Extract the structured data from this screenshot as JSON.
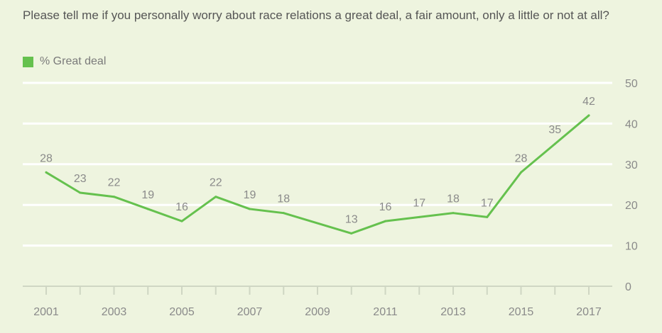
{
  "question": "Please tell me if you personally worry about race relations a great deal, a fair amount, only a little or not at all?",
  "colors": {
    "background": "#eef4df",
    "series": "#65c14e",
    "gridline": "#ffffff",
    "axis": "#cfd6c3"
  },
  "chart_data": {
    "type": "line",
    "title": "",
    "xlabel": "",
    "ylabel": "",
    "x": [
      2001,
      2002,
      2003,
      2004,
      2005,
      2006,
      2007,
      2008,
      2009,
      2010,
      2011,
      2012,
      2013,
      2014,
      2015,
      2016,
      2017
    ],
    "x_tick_labels": [
      "2001",
      "2003",
      "2005",
      "2007",
      "2009",
      "2011",
      "2013",
      "2015",
      "2017"
    ],
    "y_ticks": [
      0,
      10,
      20,
      30,
      40,
      50
    ],
    "ylim": [
      0,
      50
    ],
    "y_axis_position": "right",
    "grid": true,
    "legend_position": "top-left",
    "series": [
      {
        "name": "% Great deal",
        "color": "#65c14e",
        "points": [
          {
            "x": 2001,
            "y": 28,
            "label": "28"
          },
          {
            "x": 2002,
            "y": 23,
            "label": "23"
          },
          {
            "x": 2003,
            "y": 22,
            "label": "22"
          },
          {
            "x": 2004,
            "y": 19,
            "label": "19"
          },
          {
            "x": 2005,
            "y": 16,
            "label": "16"
          },
          {
            "x": 2006,
            "y": 22,
            "label": "22"
          },
          {
            "x": 2007,
            "y": 19,
            "label": "19"
          },
          {
            "x": 2008,
            "y": 18,
            "label": "18"
          },
          {
            "x": 2010,
            "y": 13,
            "label": "13"
          },
          {
            "x": 2011,
            "y": 16,
            "label": "16"
          },
          {
            "x": 2012,
            "y": 17,
            "label": "17"
          },
          {
            "x": 2013,
            "y": 18,
            "label": "18"
          },
          {
            "x": 2014,
            "y": 17,
            "label": "17"
          },
          {
            "x": 2015,
            "y": 28,
            "label": "28"
          },
          {
            "x": 2016,
            "y": 35,
            "label": "35"
          },
          {
            "x": 2017,
            "y": 42,
            "label": "42"
          }
        ]
      }
    ]
  }
}
